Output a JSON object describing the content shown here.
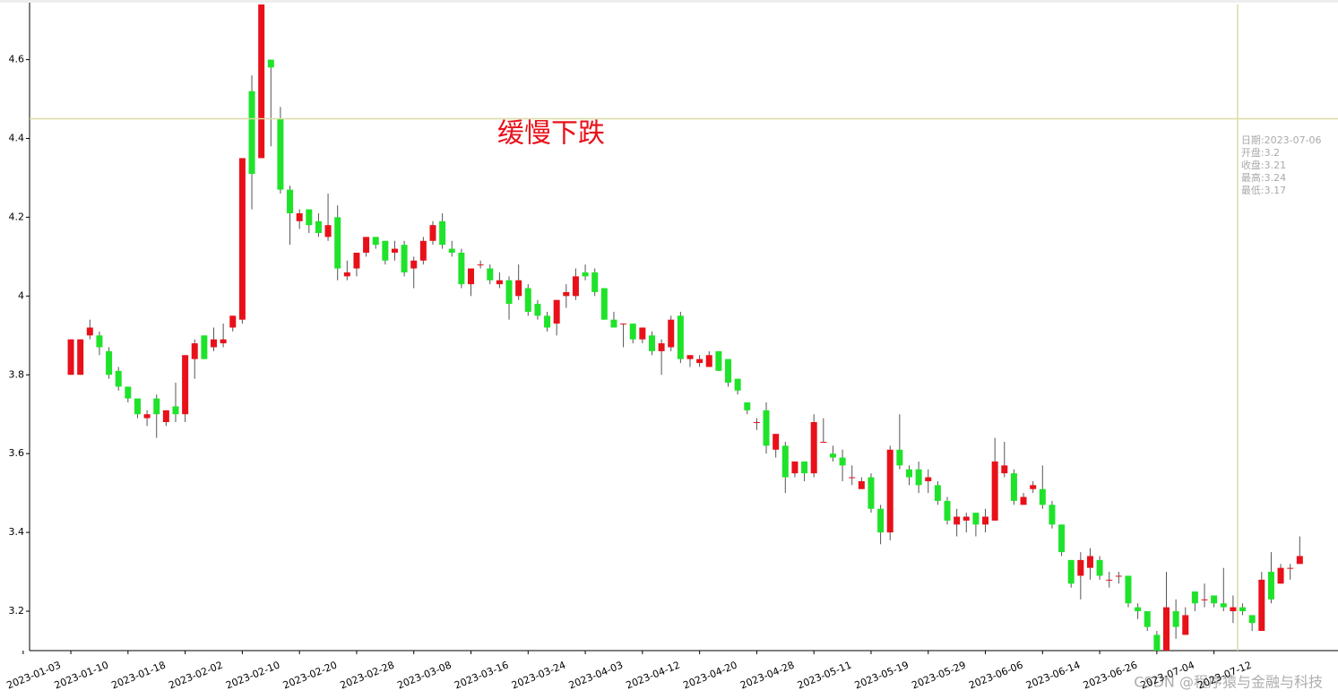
{
  "chart_data": {
    "type": "candlestick",
    "annotation": "缓慢下跌",
    "categories": [
      "2023-01-03",
      null,
      null,
      null,
      null,
      "2023-01-10",
      null,
      null,
      null,
      null,
      null,
      "2023-01-18",
      null,
      null,
      null,
      null,
      null,
      "2023-02-02",
      null,
      null,
      null,
      null,
      null,
      "2023-02-10",
      null,
      null,
      null,
      null,
      null,
      "2023-02-20",
      null,
      null,
      null,
      null,
      null,
      "2023-02-28",
      null,
      null,
      null,
      null,
      null,
      "2023-03-08",
      null,
      null,
      null,
      null,
      null,
      "2023-03-16",
      null,
      null,
      null,
      null,
      null,
      "2023-03-24",
      null,
      null,
      null,
      null,
      null,
      "2023-04-03",
      null,
      null,
      null,
      null,
      null,
      "2023-04-12",
      null,
      null,
      null,
      null,
      null,
      "2023-04-20",
      null,
      null,
      null,
      null,
      null,
      "2023-04-28",
      null,
      null,
      null,
      null,
      null,
      "2023-05-11",
      null,
      null,
      null,
      null,
      null,
      "2023-05-19",
      null,
      null,
      null,
      null,
      null,
      "2023-05-29",
      null,
      null,
      null,
      null,
      null,
      "2023-06-06",
      null,
      null,
      null,
      null,
      null,
      "2023-06-14",
      null,
      null,
      null,
      null,
      null,
      "2023-06-26",
      null,
      null,
      null,
      null,
      null,
      "2023-07-04",
      null,
      null,
      null,
      null,
      null,
      "2023-07-12",
      null,
      null,
      null,
      null,
      null,
      null,
      null,
      null,
      null
    ],
    "open": [
      null,
      null,
      null,
      null,
      null,
      3.8,
      3.8,
      3.9,
      3.9,
      3.86,
      3.81,
      3.77,
      3.74,
      3.69,
      3.74,
      3.68,
      3.72,
      3.7,
      3.84,
      3.9,
      3.87,
      3.88,
      3.92,
      3.94,
      4.52,
      4.35,
      4.6,
      4.45,
      4.27,
      4.19,
      4.22,
      4.19,
      4.15,
      4.2,
      4.05,
      4.07,
      4.11,
      4.15,
      4.14,
      4.11,
      4.13,
      4.07,
      4.09,
      4.14,
      4.19,
      4.12,
      4.11,
      4.03,
      4.08,
      4.07,
      4.03,
      4.04,
      4.0,
      4.02,
      3.98,
      3.95,
      3.93,
      4.0,
      4.0,
      4.06,
      4.06,
      4.02,
      3.94,
      3.93,
      3.93,
      3.89,
      3.9,
      3.86,
      3.87,
      3.95,
      3.84,
      3.83,
      3.82,
      3.86,
      3.84,
      3.79,
      3.73,
      3.68,
      3.71,
      3.61,
      3.62,
      3.55,
      3.58,
      3.55,
      3.63,
      3.6,
      3.59,
      3.54,
      3.51,
      3.54,
      3.46,
      3.4,
      3.61,
      3.56,
      3.56,
      3.53,
      3.52,
      3.48,
      3.42,
      3.43,
      3.45,
      3.42,
      3.43,
      3.55,
      3.55,
      3.47,
      3.51,
      3.51,
      3.47,
      3.42,
      3.33,
      3.29,
      3.31,
      3.33,
      3.28,
      3.29,
      3.29,
      3.21,
      3.2,
      3.14,
      3.1,
      3.2,
      3.14,
      3.25,
      3.23,
      3.24,
      3.22,
      3.2,
      3.21,
      3.19,
      3.15,
      3.3,
      3.27,
      3.31,
      3.32
    ],
    "close": [
      null,
      null,
      null,
      null,
      null,
      3.89,
      3.89,
      3.92,
      3.87,
      3.8,
      3.77,
      3.74,
      3.7,
      3.7,
      3.7,
      3.71,
      3.7,
      3.85,
      3.88,
      3.84,
      3.89,
      3.89,
      3.95,
      4.35,
      4.31,
      4.74,
      4.58,
      4.27,
      4.21,
      4.21,
      4.18,
      4.16,
      4.18,
      4.07,
      4.06,
      4.11,
      4.15,
      4.13,
      4.09,
      4.12,
      4.06,
      4.09,
      4.14,
      4.18,
      4.13,
      4.11,
      4.03,
      4.07,
      4.08,
      4.04,
      4.04,
      3.98,
      4.04,
      3.96,
      3.95,
      3.92,
      3.99,
      4.01,
      4.05,
      4.05,
      4.01,
      3.94,
      3.92,
      3.93,
      3.89,
      3.92,
      3.86,
      3.88,
      3.94,
      3.84,
      3.85,
      3.84,
      3.85,
      3.81,
      3.78,
      3.76,
      3.71,
      3.68,
      3.62,
      3.65,
      3.54,
      3.58,
      3.55,
      3.68,
      3.63,
      3.59,
      3.57,
      3.54,
      3.53,
      3.46,
      3.4,
      3.61,
      3.57,
      3.54,
      3.52,
      3.54,
      3.48,
      3.43,
      3.44,
      3.44,
      3.42,
      3.44,
      3.58,
      3.57,
      3.48,
      3.49,
      3.52,
      3.47,
      3.42,
      3.35,
      3.27,
      3.33,
      3.34,
      3.29,
      3.28,
      3.29,
      3.22,
      3.2,
      3.16,
      3.1,
      3.21,
      3.16,
      3.19,
      3.22,
      3.23,
      3.22,
      3.21,
      3.21,
      3.2,
      3.17,
      3.28,
      3.23,
      3.31,
      3.31,
      3.34
    ],
    "high": [
      null,
      null,
      null,
      null,
      null,
      3.89,
      3.89,
      3.94,
      3.91,
      3.87,
      3.82,
      3.77,
      3.74,
      3.71,
      3.75,
      3.71,
      3.78,
      3.85,
      3.89,
      3.9,
      3.92,
      3.93,
      3.95,
      4.35,
      4.56,
      4.74,
      4.6,
      4.48,
      4.28,
      4.22,
      4.22,
      4.21,
      4.26,
      4.23,
      4.09,
      4.11,
      4.15,
      4.15,
      4.14,
      4.14,
      4.14,
      4.1,
      4.15,
      4.19,
      4.21,
      4.14,
      4.12,
      4.07,
      4.09,
      4.08,
      4.06,
      4.05,
      4.08,
      4.03,
      3.99,
      3.96,
      3.99,
      4.03,
      4.07,
      4.08,
      4.07,
      4.02,
      3.96,
      3.93,
      3.93,
      3.92,
      3.91,
      3.89,
      3.95,
      3.96,
      3.85,
      3.85,
      3.86,
      3.86,
      3.84,
      3.79,
      3.73,
      3.69,
      3.73,
      3.65,
      3.63,
      3.58,
      3.58,
      3.7,
      3.69,
      3.62,
      3.61,
      3.57,
      3.54,
      3.55,
      3.47,
      3.62,
      3.7,
      3.57,
      3.58,
      3.56,
      3.53,
      3.49,
      3.46,
      3.45,
      3.45,
      3.46,
      3.64,
      3.63,
      3.56,
      3.5,
      3.53,
      3.57,
      3.48,
      3.42,
      3.33,
      3.35,
      3.36,
      3.34,
      3.3,
      3.3,
      3.29,
      3.22,
      3.2,
      3.15,
      3.3,
      3.23,
      3.21,
      3.25,
      3.27,
      3.24,
      3.31,
      3.24,
      3.22,
      3.19,
      3.3,
      3.35,
      3.32,
      3.32,
      3.39
    ],
    "low": [
      null,
      null,
      null,
      null,
      null,
      3.8,
      3.8,
      3.89,
      3.85,
      3.79,
      3.76,
      3.73,
      3.69,
      3.67,
      3.64,
      3.67,
      3.68,
      3.68,
      3.79,
      3.84,
      3.86,
      3.87,
      3.91,
      3.93,
      4.22,
      4.35,
      4.38,
      4.26,
      4.13,
      4.17,
      4.16,
      4.15,
      4.14,
      4.04,
      4.04,
      4.05,
      4.1,
      4.12,
      4.08,
      4.09,
      4.05,
      4.02,
      4.08,
      4.13,
      4.12,
      4.1,
      4.02,
      4.0,
      4.07,
      4.03,
      4.02,
      3.94,
      3.99,
      3.95,
      3.94,
      3.91,
      3.9,
      3.97,
      3.99,
      4.04,
      4.0,
      3.94,
      3.92,
      3.87,
      3.88,
      3.88,
      3.85,
      3.8,
      3.86,
      3.83,
      3.82,
      3.82,
      3.82,
      3.81,
      3.77,
      3.75,
      3.7,
      3.66,
      3.6,
      3.59,
      3.5,
      3.54,
      3.53,
      3.54,
      3.63,
      3.58,
      3.53,
      3.52,
      3.51,
      3.45,
      3.37,
      3.38,
      3.56,
      3.52,
      3.5,
      3.5,
      3.47,
      3.42,
      3.39,
      3.4,
      3.39,
      3.4,
      3.43,
      3.54,
      3.47,
      3.47,
      3.5,
      3.46,
      3.41,
      3.34,
      3.26,
      3.23,
      3.28,
      3.28,
      3.26,
      3.27,
      3.21,
      3.18,
      3.15,
      3.1,
      3.1,
      3.13,
      3.14,
      3.2,
      3.21,
      3.21,
      3.2,
      3.17,
      3.19,
      3.15,
      3.15,
      3.22,
      3.27,
      3.28,
      3.32
    ],
    "up_color": "#e8111a",
    "down_color": "#1fe32a",
    "wick_color": "#555555",
    "ylim": [
      3.1,
      4.74
    ],
    "yticks": [
      3.2,
      3.4,
      3.6,
      3.8,
      4,
      4.2,
      4.4,
      4.6
    ],
    "crosshair": {
      "index": 127,
      "y": 4.45,
      "color": "#d9dca3"
    },
    "tooltip": [
      "日期:2023-07-06",
      "开盘:3.2",
      "收盘:3.21",
      "最高:3.24",
      "最低:3.17"
    ]
  },
  "watermark": "CSDN @程序猿与金融与科技"
}
